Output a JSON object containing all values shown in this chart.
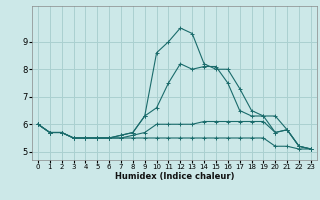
{
  "xlabel": "Humidex (Indice chaleur)",
  "ylabel": "",
  "bg_color": "#cce8e8",
  "grid_color": "#aad0d0",
  "line_color": "#1a6b6b",
  "xlim": [
    -0.5,
    23.5
  ],
  "ylim": [
    4.7,
    10.3
  ],
  "yticks": [
    5,
    6,
    7,
    8,
    9
  ],
  "xticks": [
    0,
    1,
    2,
    3,
    4,
    5,
    6,
    7,
    8,
    9,
    10,
    11,
    12,
    13,
    14,
    15,
    16,
    17,
    18,
    19,
    20,
    21,
    22,
    23
  ],
  "series": [
    [
      6.0,
      5.7,
      5.7,
      5.5,
      5.5,
      5.5,
      5.5,
      5.5,
      5.5,
      5.5,
      5.5,
      5.5,
      5.5,
      5.5,
      5.5,
      5.5,
      5.5,
      5.5,
      5.5,
      5.5,
      5.2,
      5.2,
      5.1,
      5.1
    ],
    [
      6.0,
      5.7,
      5.7,
      5.5,
      5.5,
      5.5,
      5.5,
      5.5,
      5.6,
      5.7,
      6.0,
      6.0,
      6.0,
      6.0,
      6.1,
      6.1,
      6.1,
      6.1,
      6.1,
      6.1,
      5.7,
      5.8,
      5.2,
      5.1
    ],
    [
      6.0,
      5.7,
      5.7,
      5.5,
      5.5,
      5.5,
      5.5,
      5.6,
      5.7,
      6.3,
      6.6,
      7.5,
      8.2,
      8.0,
      8.1,
      8.1,
      7.5,
      6.5,
      6.3,
      6.3,
      5.7,
      5.8,
      5.2,
      5.1
    ],
    [
      6.0,
      5.7,
      5.7,
      5.5,
      5.5,
      5.5,
      5.5,
      5.6,
      5.7,
      6.3,
      8.6,
      9.0,
      9.5,
      9.3,
      8.2,
      8.0,
      8.0,
      7.3,
      6.5,
      6.3,
      6.3,
      5.8,
      5.2,
      5.1
    ]
  ]
}
